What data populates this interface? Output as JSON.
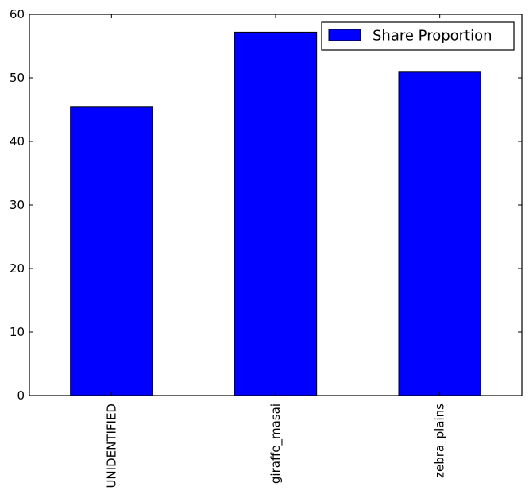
{
  "chart_data": {
    "type": "bar",
    "title": "",
    "xlabel": "",
    "ylabel": "",
    "categories": [
      "UNIDENTIFIED",
      "giraffe_masai",
      "zebra_plains"
    ],
    "series": [
      {
        "name": "Share Proportion",
        "values": [
          45.4,
          57.2,
          50.9
        ]
      }
    ],
    "ylim": [
      0,
      60
    ],
    "yticks": [
      "0",
      "10",
      "20",
      "30",
      "40",
      "50",
      "60"
    ],
    "grid": false,
    "legend_position": "top-right",
    "colors": {
      "bar": "#0000ff",
      "bar_edge": "#000000",
      "axes": "#000000",
      "background": "#ffffff"
    }
  }
}
